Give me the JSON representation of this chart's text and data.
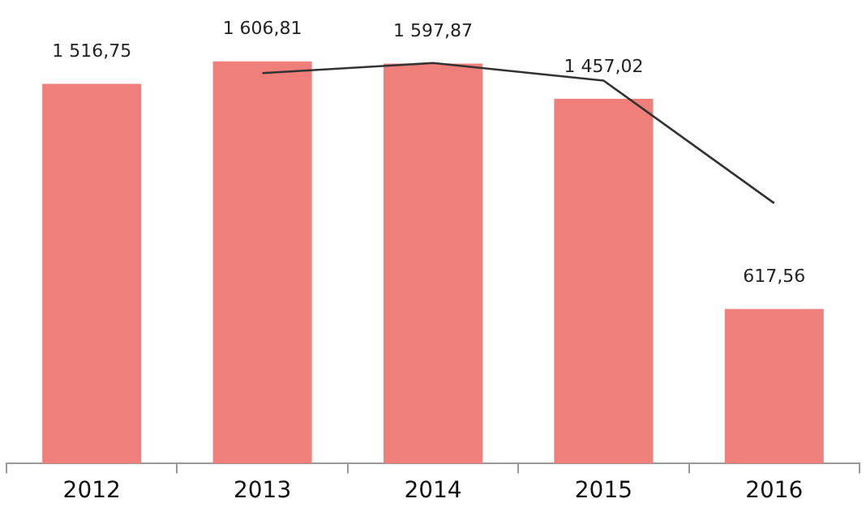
{
  "chart_data": {
    "type": "bar",
    "categories": [
      "2012",
      "2013",
      "2014",
      "2015",
      "2016"
    ],
    "series": [
      {
        "color": "#ee7f7a",
        "values": [
          1516.75,
          1606.81,
          1597.87,
          1457.02,
          617.56
        ],
        "value_labels": [
          "1 516,75",
          "1 606,81",
          "1 597,87",
          "1 457,02",
          "617,56"
        ]
      },
      {
        "type": "line",
        "color": "#333333",
        "values": [
          null,
          1560,
          1600,
          1530,
          1040
        ]
      }
    ],
    "grid": false,
    "legend": false,
    "marker": "none",
    "line_style": "solid"
  }
}
